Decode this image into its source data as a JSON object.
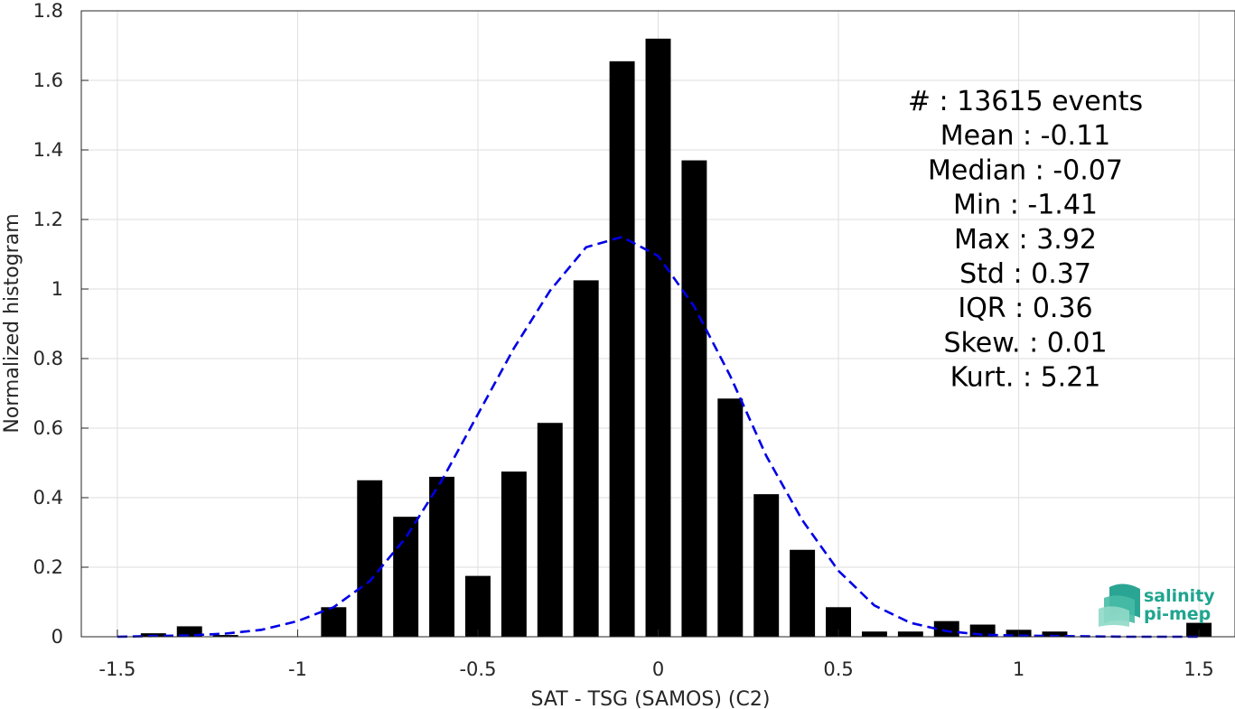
{
  "chart_data": {
    "type": "bar",
    "xlabel": "SAT - TSG (SAMOS) (C2)",
    "ylabel": "Normalized histogram",
    "xlim": [
      -1.6,
      1.6
    ],
    "ylim": [
      0,
      1.8
    ],
    "xticks": [
      -1.5,
      -1,
      -0.5,
      0,
      0.5,
      1,
      1.5
    ],
    "xtick_labels": [
      "-1.5",
      "-1",
      "-0.5",
      "0",
      "0.5",
      "1",
      "1.5"
    ],
    "yticks": [
      0,
      0.2,
      0.4,
      0.6,
      0.8,
      1,
      1.2,
      1.4,
      1.6,
      1.8
    ],
    "ytick_labels": [
      "0",
      "0.2",
      "0.4",
      "0.6",
      "0.8",
      "1",
      "1.2",
      "1.4",
      "1.6",
      "1.8"
    ],
    "grid": true,
    "bar_color": "#000000",
    "bar_width": 0.07,
    "bars": [
      {
        "x": -1.4,
        "y": 0.01
      },
      {
        "x": -1.3,
        "y": 0.03
      },
      {
        "x": -1.2,
        "y": 0.005
      },
      {
        "x": -0.9,
        "y": 0.085
      },
      {
        "x": -0.8,
        "y": 0.45
      },
      {
        "x": -0.7,
        "y": 0.345
      },
      {
        "x": -0.6,
        "y": 0.46
      },
      {
        "x": -0.5,
        "y": 0.175
      },
      {
        "x": -0.4,
        "y": 0.475
      },
      {
        "x": -0.3,
        "y": 0.615
      },
      {
        "x": -0.2,
        "y": 1.025
      },
      {
        "x": -0.1,
        "y": 1.655
      },
      {
        "x": 0.0,
        "y": 1.72
      },
      {
        "x": 0.1,
        "y": 1.37
      },
      {
        "x": 0.2,
        "y": 0.685
      },
      {
        "x": 0.3,
        "y": 0.41
      },
      {
        "x": 0.4,
        "y": 0.25
      },
      {
        "x": 0.5,
        "y": 0.085
      },
      {
        "x": 0.6,
        "y": 0.015
      },
      {
        "x": 0.7,
        "y": 0.015
      },
      {
        "x": 0.8,
        "y": 0.045
      },
      {
        "x": 0.9,
        "y": 0.035
      },
      {
        "x": 1.0,
        "y": 0.02
      },
      {
        "x": 1.1,
        "y": 0.015
      },
      {
        "x": 1.5,
        "y": 0.04
      }
    ],
    "fit_curve": {
      "style": "dashed",
      "color": "#0000e6",
      "x": [
        -1.5,
        -1.4,
        -1.3,
        -1.2,
        -1.1,
        -1.0,
        -0.9,
        -0.8,
        -0.7,
        -0.6,
        -0.5,
        -0.4,
        -0.3,
        -0.2,
        -0.1,
        0.0,
        0.1,
        0.2,
        0.3,
        0.4,
        0.5,
        0.6,
        0.7,
        0.8,
        0.9,
        1.0,
        1.1,
        1.2,
        1.3,
        1.4,
        1.5
      ],
      "y": [
        0.0,
        0.002,
        0.004,
        0.009,
        0.02,
        0.045,
        0.085,
        0.16,
        0.285,
        0.45,
        0.64,
        0.83,
        0.995,
        1.12,
        1.15,
        1.095,
        0.95,
        0.75,
        0.52,
        0.335,
        0.19,
        0.09,
        0.04,
        0.016,
        0.006,
        0.003,
        0.002,
        0.001,
        0.0,
        0.0,
        0.0
      ]
    },
    "stats": [
      "#  : 13615 events",
      "Mean : -0.11",
      "Median : -0.07",
      "Min : -1.41",
      "Max : 3.92",
      "Std : 0.37",
      "IQR : 0.36",
      "Skew. : 0.01",
      "Kurt. : 5.21"
    ]
  },
  "logo": {
    "line1": "salinity",
    "line2": "pi-mep",
    "color": "#1fa58f"
  }
}
